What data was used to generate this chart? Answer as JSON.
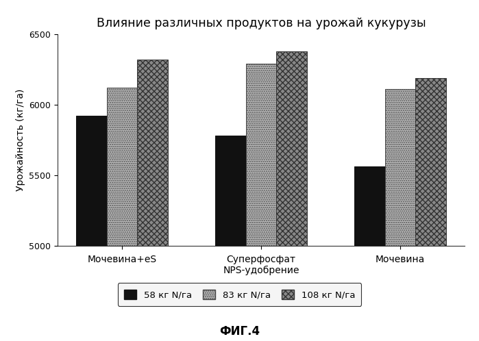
{
  "title": "Влияние различных продуктов на урожай кукурузы",
  "categories": [
    "Мочевина+eS",
    "Суперфосфат\nNPS-удобрение",
    "Мочевина"
  ],
  "series": [
    {
      "label": "58 кг N/га",
      "values": [
        5920,
        5780,
        5560
      ],
      "color": "#111111",
      "hatch": ""
    },
    {
      "label": "83 кг N/га",
      "values": [
        6120,
        6290,
        6110
      ],
      "color": "#cccccc",
      "hatch": "...."
    },
    {
      "label": "108 кг N/га",
      "values": [
        6320,
        6380,
        6190
      ],
      "color": "#999999",
      "hatch": "...."
    }
  ],
  "ylabel": "Урожайность (кг/га)",
  "ylim": [
    5000,
    6500
  ],
  "yticks": [
    5000,
    5500,
    6000,
    6500
  ],
  "caption": "ФИГ.4",
  "background_color": "#ffffff",
  "bar_width": 0.22
}
